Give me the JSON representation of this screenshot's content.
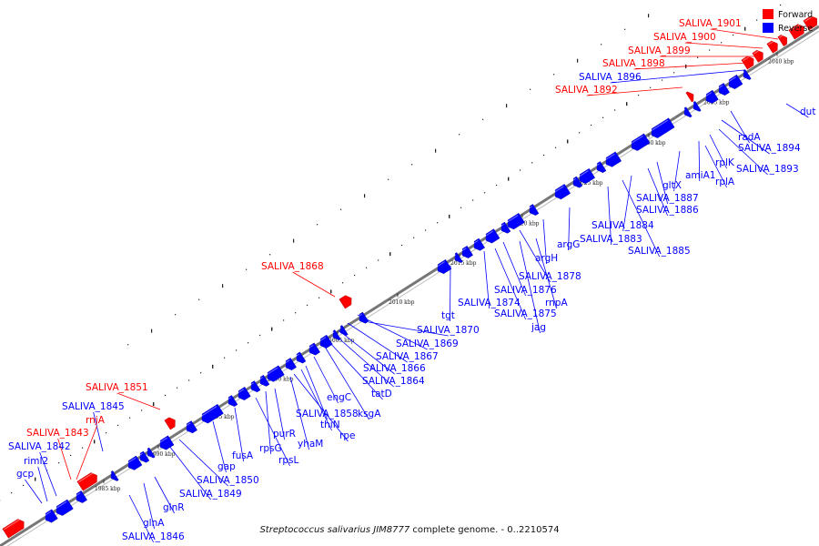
{
  "caption": {
    "organism": "Streptococcus salivarius JIM8777",
    "suffix": " complete genome. - 0..2210574"
  },
  "legend": [
    {
      "label": "Forward",
      "color": "#ff0000"
    },
    {
      "label": "Reverse",
      "color": "#0000ff"
    }
  ],
  "colors": {
    "forward": "#ff0000",
    "reverse": "#0000ff",
    "backbone": "#777777"
  },
  "ticks": [
    "1985 kbp",
    "1990 kbp",
    "1995 kbp",
    "2000 kbp",
    "2005 kbp",
    "2010 kbp",
    "2015 kbp",
    "2020 kbp",
    "2025 kbp",
    "2030 kbp",
    "2035 kbp",
    "2040 kbp"
  ],
  "labels": [
    {
      "text": "SALIVA_1901",
      "strand": "forward"
    },
    {
      "text": "SALIVA_1900",
      "strand": "forward"
    },
    {
      "text": "SALIVA_1899",
      "strand": "forward"
    },
    {
      "text": "SALIVA_1898",
      "strand": "forward"
    },
    {
      "text": "SALIVA_1896",
      "strand": "reverse"
    },
    {
      "text": "SALIVA_1892",
      "strand": "forward"
    },
    {
      "text": "dut",
      "strand": "reverse"
    },
    {
      "text": "radA",
      "strand": "reverse"
    },
    {
      "text": "SALIVA_1894",
      "strand": "reverse"
    },
    {
      "text": "SALIVA_1893",
      "strand": "reverse"
    },
    {
      "text": "rplK",
      "strand": "reverse"
    },
    {
      "text": "amiA1",
      "strand": "reverse"
    },
    {
      "text": "rplA",
      "strand": "reverse"
    },
    {
      "text": "gltX",
      "strand": "reverse"
    },
    {
      "text": "SALIVA_1887",
      "strand": "reverse"
    },
    {
      "text": "SALIVA_1886",
      "strand": "reverse"
    },
    {
      "text": "SALIVA_1884",
      "strand": "reverse"
    },
    {
      "text": "argG",
      "strand": "reverse"
    },
    {
      "text": "SALIVA_1883",
      "strand": "reverse"
    },
    {
      "text": "SALIVA_1885",
      "strand": "reverse"
    },
    {
      "text": "argH",
      "strand": "reverse"
    },
    {
      "text": "SALIVA_1878",
      "strand": "reverse"
    },
    {
      "text": "SALIVA_1868",
      "strand": "forward"
    },
    {
      "text": "SALIVA_1876",
      "strand": "reverse"
    },
    {
      "text": "rnpA",
      "strand": "reverse"
    },
    {
      "text": "SALIVA_1874",
      "strand": "reverse"
    },
    {
      "text": "tgt",
      "strand": "reverse"
    },
    {
      "text": "SALIVA_1875",
      "strand": "reverse"
    },
    {
      "text": "jag",
      "strand": "reverse"
    },
    {
      "text": "SALIVA_1870",
      "strand": "reverse"
    },
    {
      "text": "SALIVA_1869",
      "strand": "reverse"
    },
    {
      "text": "SALIVA_1867",
      "strand": "reverse"
    },
    {
      "text": "SALIVA_1866",
      "strand": "reverse"
    },
    {
      "text": "SALIVA_1864",
      "strand": "reverse"
    },
    {
      "text": "tatD",
      "strand": "reverse"
    },
    {
      "text": "engC",
      "strand": "reverse"
    },
    {
      "text": "SALIVA_1858",
      "strand": "reverse"
    },
    {
      "text": "ksgA",
      "strand": "reverse"
    },
    {
      "text": "thiN",
      "strand": "reverse"
    },
    {
      "text": "rpe",
      "strand": "reverse"
    },
    {
      "text": "yhaM",
      "strand": "reverse"
    },
    {
      "text": "purR",
      "strand": "reverse"
    },
    {
      "text": "rpsG",
      "strand": "reverse"
    },
    {
      "text": "rpsL",
      "strand": "reverse"
    },
    {
      "text": "fusA",
      "strand": "reverse"
    },
    {
      "text": "gap",
      "strand": "reverse"
    },
    {
      "text": "SALIVA_1850",
      "strand": "reverse"
    },
    {
      "text": "SALIVA_1849",
      "strand": "reverse"
    },
    {
      "text": "SALIVA_1851",
      "strand": "forward"
    },
    {
      "text": "SALIVA_1845",
      "strand": "reverse"
    },
    {
      "text": "rnjA",
      "strand": "forward"
    },
    {
      "text": "SALIVA_1843",
      "strand": "forward"
    },
    {
      "text": "SALIVA_1842",
      "strand": "reverse"
    },
    {
      "text": "rimI2",
      "strand": "reverse"
    },
    {
      "text": "gcp",
      "strand": "reverse"
    },
    {
      "text": "glnR",
      "strand": "reverse"
    },
    {
      "text": "glnA",
      "strand": "reverse"
    },
    {
      "text": "SALIVA_1846",
      "strand": "reverse"
    }
  ]
}
